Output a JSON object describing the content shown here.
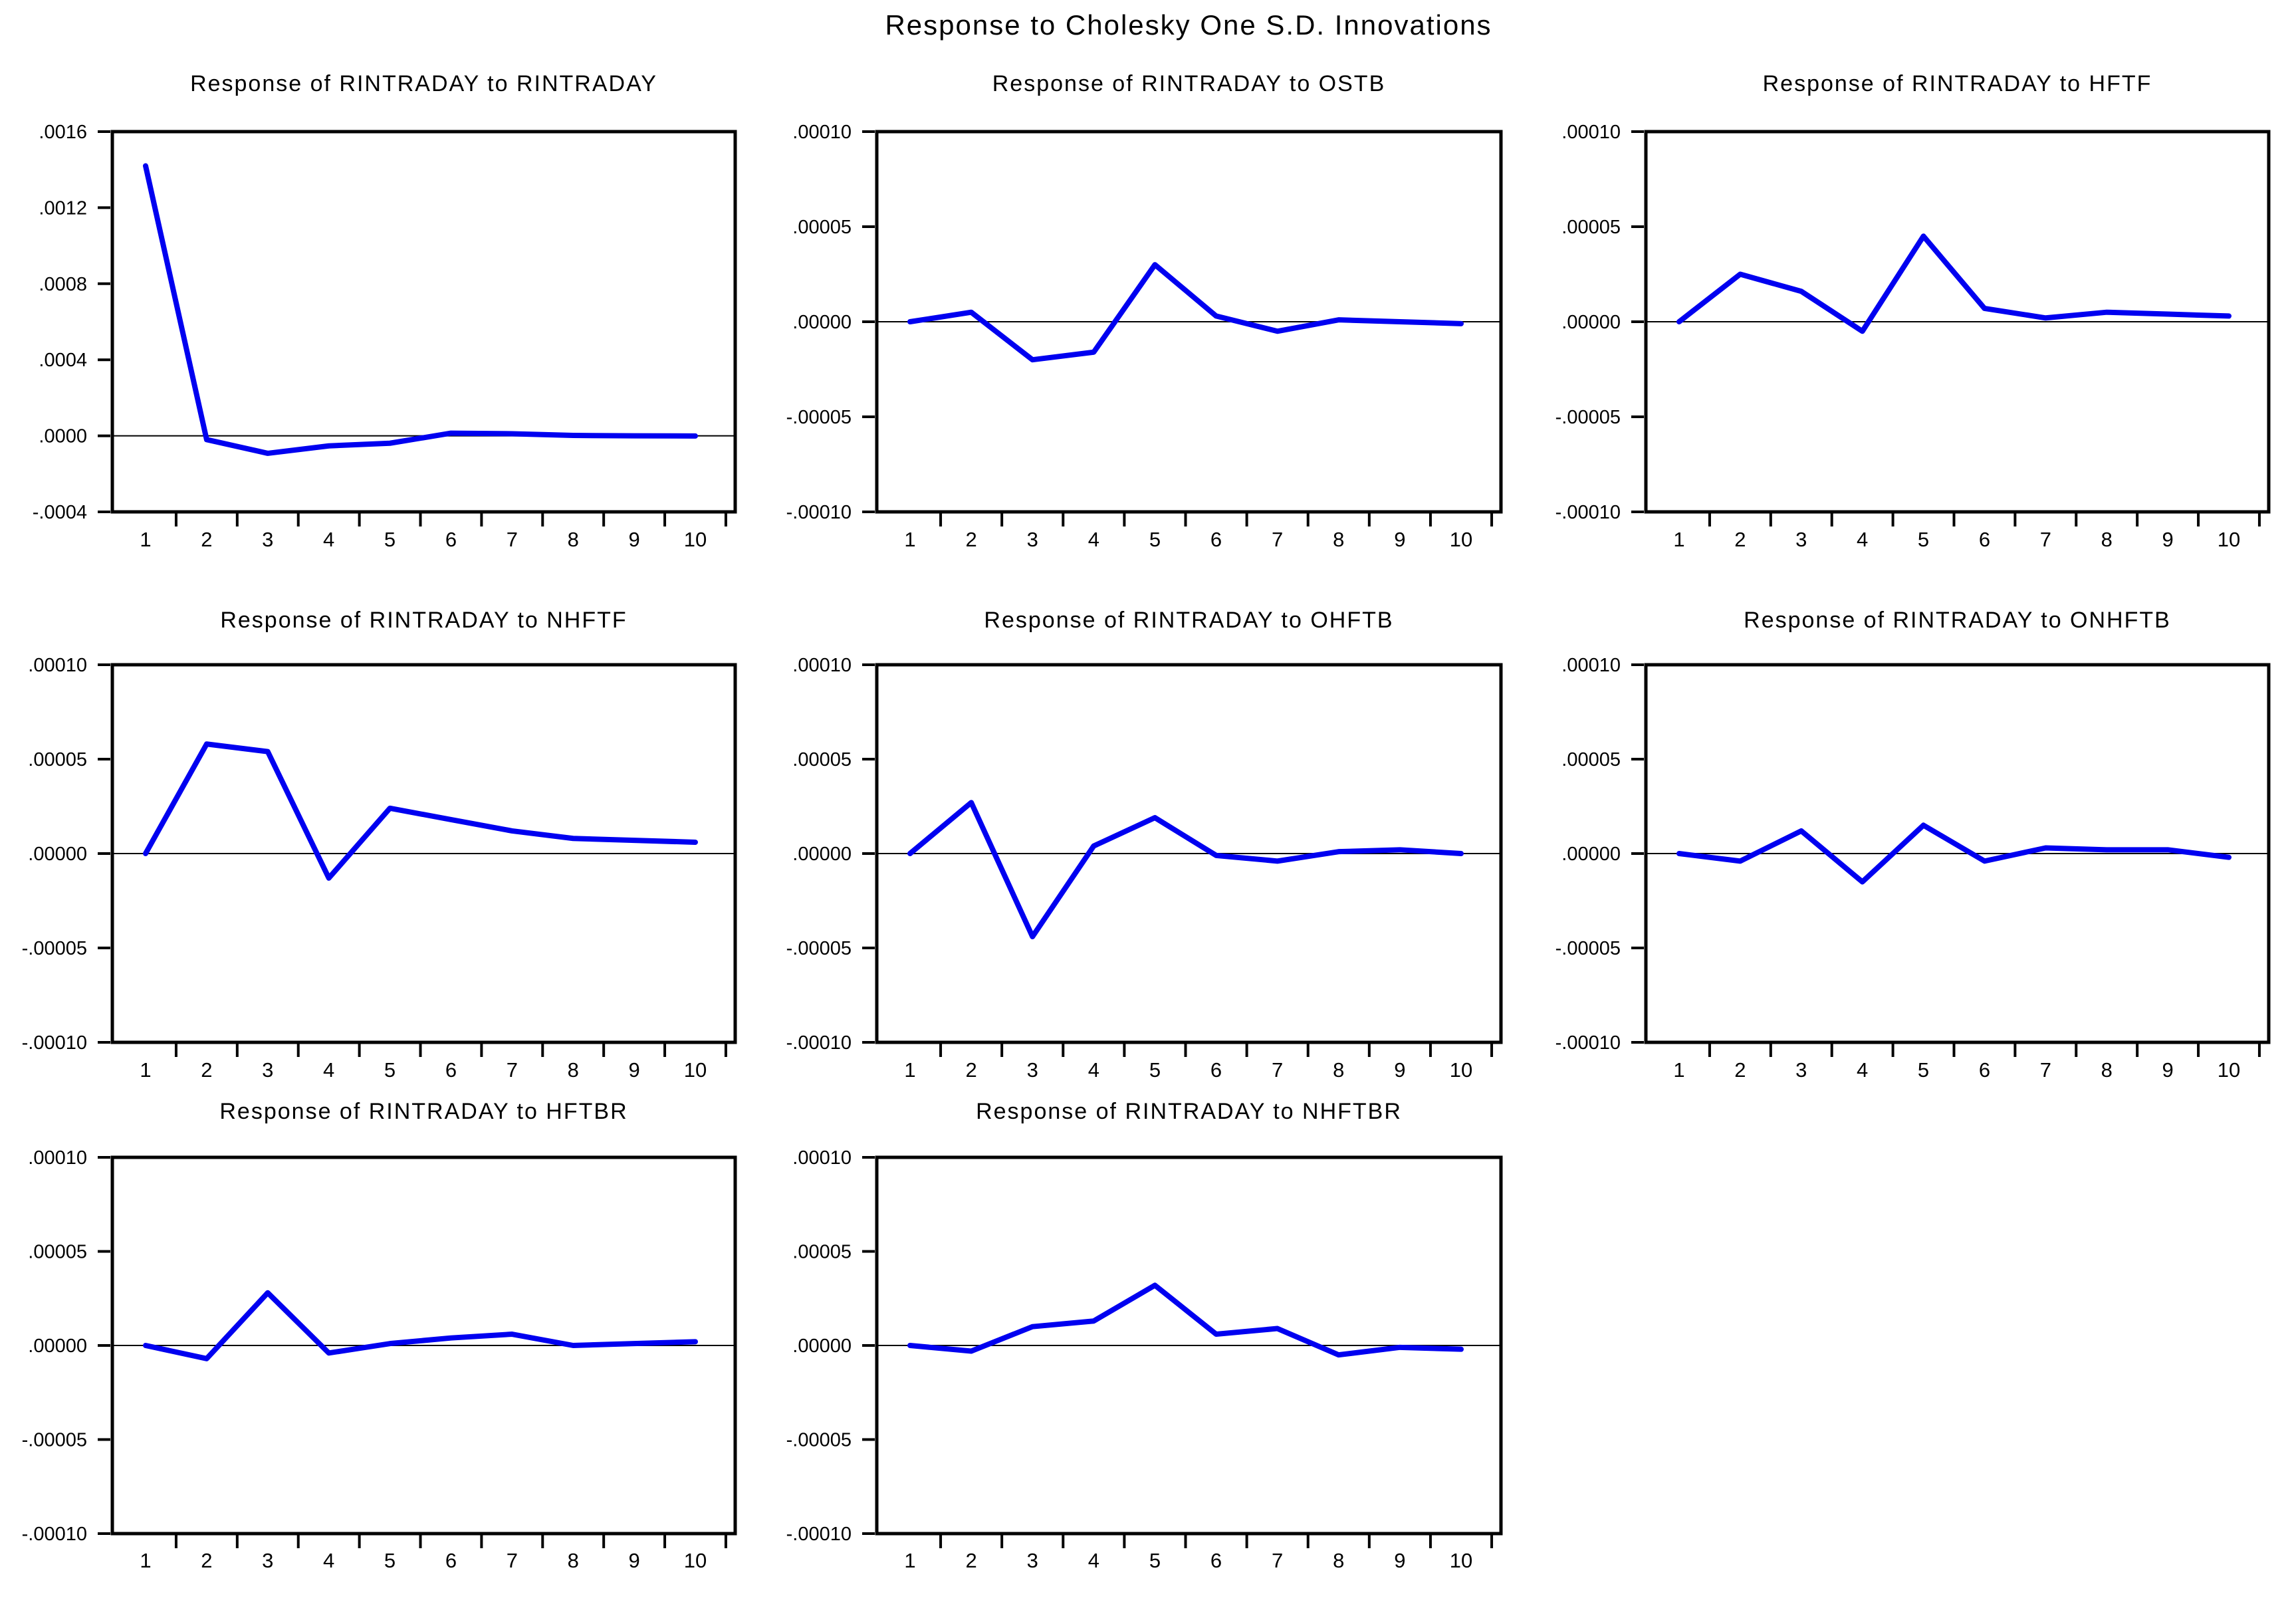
{
  "figure_title": "Response to Cholesky One S.D. Innovations",
  "colors": {
    "line": "#0000F0",
    "axis": "#000000",
    "background": "#FFFFFF"
  },
  "chart_data": [
    {
      "type": "line",
      "title": "Response of RINTRADAY to RINTRADAY",
      "x": [
        1,
        2,
        3,
        4,
        5,
        6,
        7,
        8,
        9,
        10
      ],
      "values": [
        0.00142,
        -2e-05,
        -9.2e-05,
        -5.3e-05,
        -3.9e-05,
        1.4e-05,
        1.1e-05,
        2e-06,
        0.0,
        -1e-06
      ],
      "ylim": [
        -0.0004,
        0.0016
      ],
      "ytick_labels": [
        ".0016",
        ".0012",
        ".0008",
        ".0004",
        ".0000",
        "-.0004"
      ],
      "ytick_values": [
        0.0016,
        0.0012,
        0.0008,
        0.0004,
        0.0,
        -0.0004
      ],
      "grid": false,
      "legend": "none"
    },
    {
      "type": "line",
      "title": "Response of RINTRADAY to OSTB",
      "x": [
        1,
        2,
        3,
        4,
        5,
        6,
        7,
        8,
        9,
        10
      ],
      "values": [
        0.0,
        5e-06,
        -2e-05,
        -1.6e-05,
        3e-05,
        3e-06,
        -5e-06,
        1e-06,
        0.0,
        -1e-06
      ],
      "ylim": [
        -0.0001,
        0.0001
      ],
      "ytick_labels": [
        ".00010",
        ".00005",
        ".00000",
        "-.00005",
        "-.00010"
      ],
      "ytick_values": [
        0.0001,
        5e-05,
        0.0,
        -5e-05,
        -0.0001
      ],
      "grid": false,
      "legend": "none"
    },
    {
      "type": "line",
      "title": "Response of RINTRADAY to HFTF",
      "x": [
        1,
        2,
        3,
        4,
        5,
        6,
        7,
        8,
        9,
        10
      ],
      "values": [
        0.0,
        2.5e-05,
        1.6e-05,
        -5e-06,
        4.5e-05,
        7e-06,
        2e-06,
        5e-06,
        4e-06,
        3e-06
      ],
      "ylim": [
        -0.0001,
        0.0001
      ],
      "ytick_labels": [
        ".00010",
        ".00005",
        ".00000",
        "-.00005",
        "-.00010"
      ],
      "ytick_values": [
        0.0001,
        5e-05,
        0.0,
        -5e-05,
        -0.0001
      ],
      "grid": false,
      "legend": "none"
    },
    {
      "type": "line",
      "title": "Response of RINTRADAY to NHFTF",
      "x": [
        1,
        2,
        3,
        4,
        5,
        6,
        7,
        8,
        9,
        10
      ],
      "values": [
        0.0,
        5.8e-05,
        5.4e-05,
        -1.3e-05,
        2.4e-05,
        1.8e-05,
        1.2e-05,
        8e-06,
        7e-06,
        6e-06
      ],
      "ylim": [
        -0.0001,
        0.0001
      ],
      "ytick_labels": [
        ".00010",
        ".00005",
        ".00000",
        "-.00005",
        "-.00010"
      ],
      "ytick_values": [
        0.0001,
        5e-05,
        0.0,
        -5e-05,
        -0.0001
      ],
      "grid": false,
      "legend": "none"
    },
    {
      "type": "line",
      "title": "Response of RINTRADAY to OHFTB",
      "x": [
        1,
        2,
        3,
        4,
        5,
        6,
        7,
        8,
        9,
        10
      ],
      "values": [
        0.0,
        2.7e-05,
        -4.4e-05,
        4e-06,
        1.9e-05,
        -1e-06,
        -4e-06,
        1e-06,
        2e-06,
        0.0
      ],
      "ylim": [
        -0.0001,
        0.0001
      ],
      "ytick_labels": [
        ".00010",
        ".00005",
        ".00000",
        "-.00005",
        "-.00010"
      ],
      "ytick_values": [
        0.0001,
        5e-05,
        0.0,
        -5e-05,
        -0.0001
      ],
      "grid": false,
      "legend": "none"
    },
    {
      "type": "line",
      "title": "Response of RINTRADAY to ONHFTB",
      "x": [
        1,
        2,
        3,
        4,
        5,
        6,
        7,
        8,
        9,
        10
      ],
      "values": [
        0.0,
        -4e-06,
        1.2e-05,
        -1.5e-05,
        1.5e-05,
        -4e-06,
        3e-06,
        2e-06,
        2e-06,
        -2e-06
      ],
      "ylim": [
        -0.0001,
        0.0001
      ],
      "ytick_labels": [
        ".00010",
        ".00005",
        ".00000",
        "-.00005",
        "-.00010"
      ],
      "ytick_values": [
        0.0001,
        5e-05,
        0.0,
        -5e-05,
        -0.0001
      ],
      "grid": false,
      "legend": "none"
    },
    {
      "type": "line",
      "title": "Response of RINTRADAY to HFTBR",
      "x": [
        1,
        2,
        3,
        4,
        5,
        6,
        7,
        8,
        9,
        10
      ],
      "values": [
        0.0,
        -7e-06,
        2.8e-05,
        -4e-06,
        1e-06,
        4e-06,
        6e-06,
        0.0,
        1e-06,
        2e-06
      ],
      "ylim": [
        -0.0001,
        0.0001
      ],
      "ytick_labels": [
        ".00010",
        ".00005",
        ".00000",
        "-.00005",
        "-.00010"
      ],
      "ytick_values": [
        0.0001,
        5e-05,
        0.0,
        -5e-05,
        -0.0001
      ],
      "grid": false,
      "legend": "none"
    },
    {
      "type": "line",
      "title": "Response of RINTRADAY to NHFTBR",
      "x": [
        1,
        2,
        3,
        4,
        5,
        6,
        7,
        8,
        9,
        10
      ],
      "values": [
        0.0,
        -3e-06,
        1e-05,
        1.3e-05,
        3.2e-05,
        6e-06,
        9e-06,
        -5e-06,
        -1e-06,
        -2e-06
      ],
      "ylim": [
        -0.0001,
        0.0001
      ],
      "ytick_labels": [
        ".00010",
        ".00005",
        ".00000",
        "-.00005",
        "-.00010"
      ],
      "ytick_values": [
        0.0001,
        5e-05,
        0.0,
        -5e-05,
        -0.0001
      ],
      "grid": false,
      "legend": "none"
    }
  ]
}
